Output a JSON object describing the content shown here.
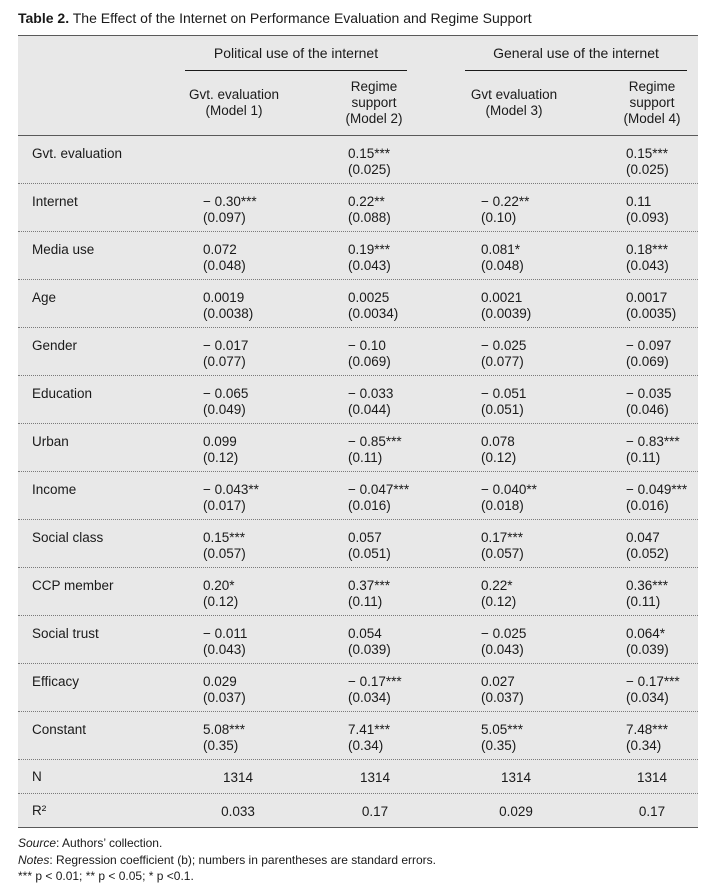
{
  "caption": {
    "label": "Table 2.",
    "title": "The Effect of the Internet on Performance Evaluation and Regime Support"
  },
  "header": {
    "groups": [
      "Political use of the internet",
      "General use of the internet"
    ],
    "columns": [
      [
        "Gvt. evaluation",
        "(Model 1)"
      ],
      [
        "Regime",
        "support",
        "(Model 2)"
      ],
      [
        "Gvt evaluation",
        "(Model 3)"
      ],
      [
        "Regime",
        "support",
        "(Model 4)"
      ]
    ]
  },
  "rows": [
    {
      "label": "Gvt. evaluation",
      "cells": [
        [
          "",
          ""
        ],
        [
          "0.15***",
          "(0.025)"
        ],
        [
          "",
          ""
        ],
        [
          "0.15***",
          "(0.025)"
        ]
      ]
    },
    {
      "label": "Internet",
      "cells": [
        [
          "− 0.30***",
          "(0.097)"
        ],
        [
          "0.22**",
          "(0.088)"
        ],
        [
          "− 0.22**",
          "(0.10)"
        ],
        [
          "0.11",
          "(0.093)"
        ]
      ]
    },
    {
      "label": "Media use",
      "cells": [
        [
          "0.072",
          "(0.048)"
        ],
        [
          "0.19***",
          "(0.043)"
        ],
        [
          "0.081*",
          "(0.048)"
        ],
        [
          "0.18***",
          "(0.043)"
        ]
      ]
    },
    {
      "label": "Age",
      "cells": [
        [
          "0.0019",
          "(0.0038)"
        ],
        [
          "0.0025",
          "(0.0034)"
        ],
        [
          "0.0021",
          "(0.0039)"
        ],
        [
          "0.0017",
          "(0.0035)"
        ]
      ]
    },
    {
      "label": "Gender",
      "cells": [
        [
          "− 0.017",
          "(0.077)"
        ],
        [
          "− 0.10",
          "(0.069)"
        ],
        [
          "− 0.025",
          "(0.077)"
        ],
        [
          "− 0.097",
          "(0.069)"
        ]
      ]
    },
    {
      "label": "Education",
      "cells": [
        [
          "− 0.065",
          "(0.049)"
        ],
        [
          "− 0.033",
          "(0.044)"
        ],
        [
          "− 0.051",
          "(0.051)"
        ],
        [
          "− 0.035",
          "(0.046)"
        ]
      ]
    },
    {
      "label": "Urban",
      "cells": [
        [
          "0.099",
          "(0.12)"
        ],
        [
          "− 0.85***",
          "(0.11)"
        ],
        [
          "0.078",
          "(0.12)"
        ],
        [
          "− 0.83***",
          "(0.11)"
        ]
      ]
    },
    {
      "label": "Income",
      "cells": [
        [
          "− 0.043**",
          "(0.017)"
        ],
        [
          "− 0.047***",
          "(0.016)"
        ],
        [
          "− 0.040**",
          "(0.018)"
        ],
        [
          "− 0.049***",
          "(0.016)"
        ]
      ]
    },
    {
      "label": "Social class",
      "cells": [
        [
          "0.15***",
          "(0.057)"
        ],
        [
          "0.057",
          "(0.051)"
        ],
        [
          "0.17***",
          "(0.057)"
        ],
        [
          "0.047",
          "(0.052)"
        ]
      ]
    },
    {
      "label": "CCP member",
      "cells": [
        [
          "0.20*",
          "(0.12)"
        ],
        [
          "0.37***",
          "(0.11)"
        ],
        [
          "0.22*",
          "(0.12)"
        ],
        [
          "0.36***",
          "(0.11)"
        ]
      ]
    },
    {
      "label": "Social trust",
      "cells": [
        [
          "− 0.011",
          "(0.043)"
        ],
        [
          "0.054",
          "(0.039)"
        ],
        [
          "− 0.025",
          "(0.043)"
        ],
        [
          "0.064*",
          "(0.039)"
        ]
      ]
    },
    {
      "label": "Efficacy",
      "cells": [
        [
          "0.029",
          "(0.037)"
        ],
        [
          "− 0.17***",
          "(0.034)"
        ],
        [
          "0.027",
          "(0.037)"
        ],
        [
          "− 0.17***",
          "(0.034)"
        ]
      ]
    },
    {
      "label": "Constant",
      "cells": [
        [
          "5.08***",
          "(0.35)"
        ],
        [
          "7.41***",
          "(0.34)"
        ],
        [
          "5.05***",
          "(0.35)"
        ],
        [
          "7.48***",
          "(0.34)"
        ]
      ]
    }
  ],
  "summary_rows": [
    {
      "label": "N",
      "cells": [
        "1314",
        "1314",
        "1314",
        "1314"
      ]
    },
    {
      "label": "R²",
      "cells": [
        "0.033",
        "0.17",
        "0.029",
        "0.17"
      ]
    }
  ],
  "notes": {
    "source_label": "Source",
    "source_text": ": Authors’ collection.",
    "notes_label": "Notes",
    "notes_text": ": Regression coefficient (b); numbers in parentheses are standard errors.",
    "significance": "*** p < 0.01; ** p < 0.05; * p <0.1."
  }
}
